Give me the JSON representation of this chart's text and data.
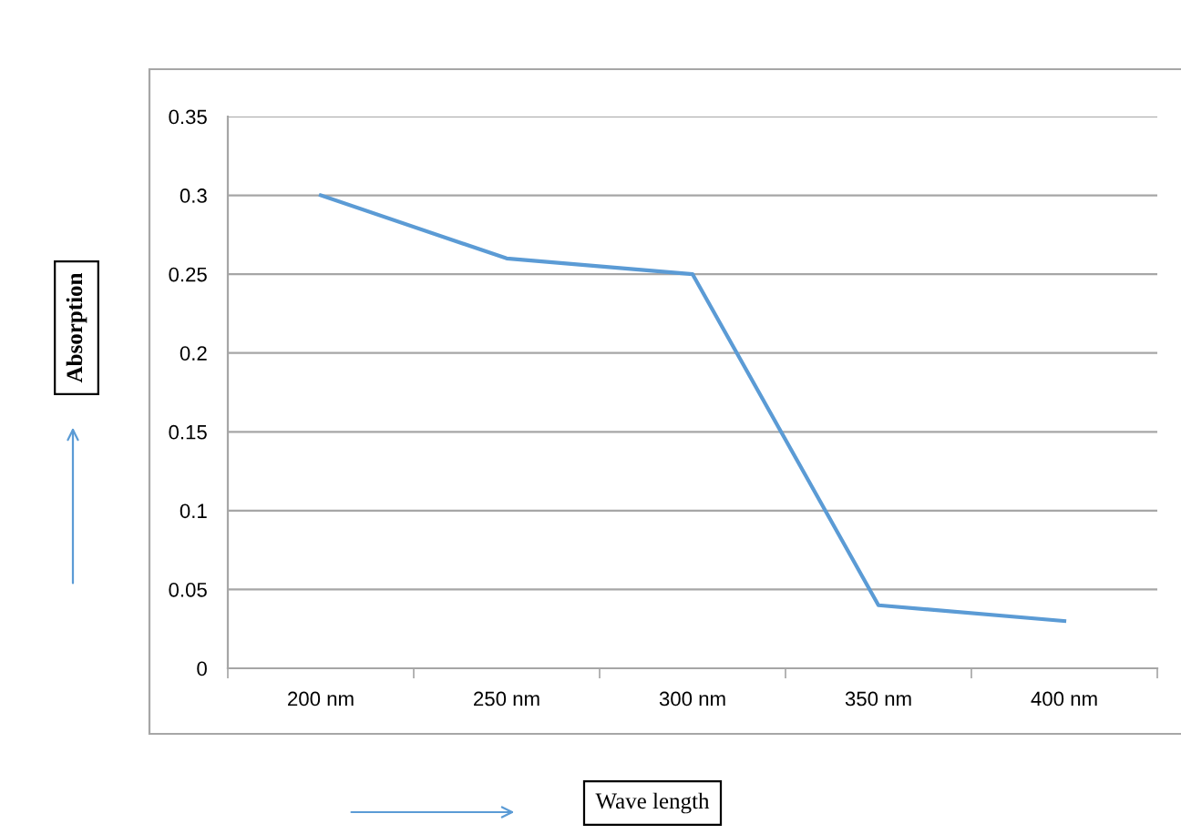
{
  "chart_data": {
    "type": "line",
    "categories": [
      "200 nm",
      "250 nm",
      "300 nm",
      "350 nm",
      "400 nm"
    ],
    "series": [
      {
        "color": "#5b9bd5",
        "values": [
          0.3,
          0.26,
          0.25,
          0.04,
          0.03
        ]
      }
    ],
    "ylim": [
      0,
      0.35
    ],
    "yticks": [
      0,
      0.05,
      0.1,
      0.15,
      0.2,
      0.25,
      0.3,
      0.35
    ],
    "xlabel": "Wave length",
    "ylabel": "Absorption",
    "grid": "y",
    "legend": false,
    "marker": "none",
    "line_style": "solid"
  }
}
